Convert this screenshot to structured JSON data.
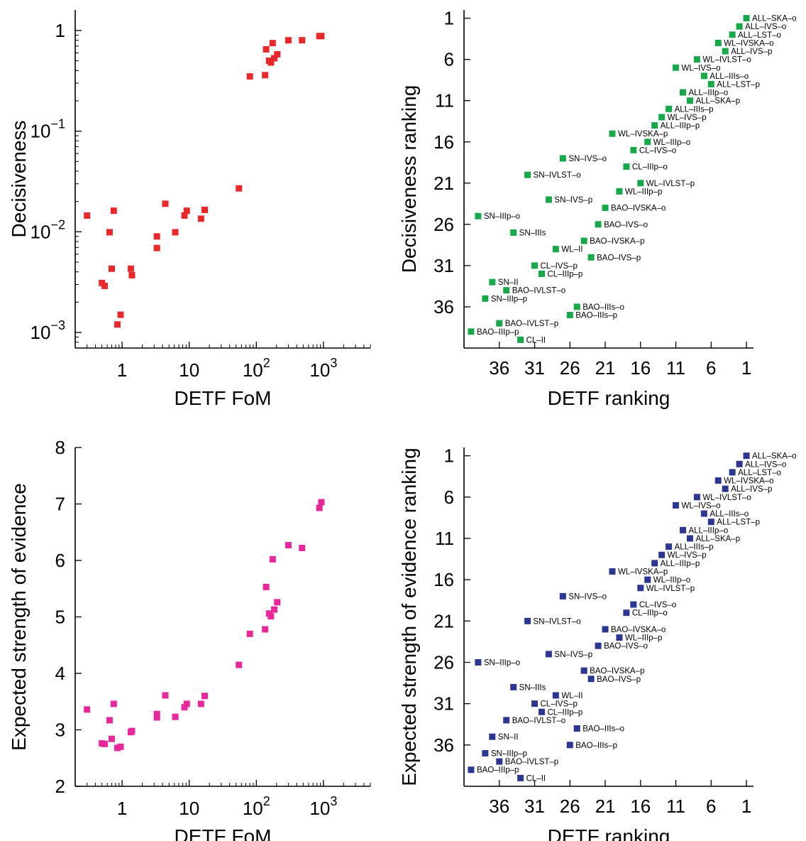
{
  "colors": {
    "decisiveness": "#e8292c",
    "evidence": "#e6289a",
    "rank_top": "#18a84a",
    "rank_bottom": "#2b3791"
  },
  "chart_data": [
    {
      "id": "fom-decisiveness",
      "type": "scatter",
      "xlabel": "DETF FoM",
      "ylabel": "Decisiveness",
      "xscale": "log",
      "yscale": "log",
      "xlim": [
        0.2,
        5000
      ],
      "ylim": [
        0.0007,
        1.6
      ],
      "xticks": [
        {
          "v": 1,
          "t": "1",
          "e": ""
        },
        {
          "v": 10,
          "t": "10",
          "e": ""
        },
        {
          "v": 100,
          "t": "10",
          "e": "2"
        },
        {
          "v": 1000,
          "t": "10",
          "e": "3"
        }
      ],
      "yticks": [
        {
          "v": 0.001,
          "t": "10",
          "e": "−3"
        },
        {
          "v": 0.01,
          "t": "10",
          "e": "−2"
        },
        {
          "v": 0.1,
          "t": "10",
          "e": "−1"
        },
        {
          "v": 1,
          "t": "1",
          "e": ""
        }
      ],
      "color_key": "decisiveness",
      "points": [
        [
          0.3,
          0.0145
        ],
        [
          0.5,
          0.0031
        ],
        [
          0.55,
          0.0029
        ],
        [
          0.65,
          0.0099
        ],
        [
          0.7,
          0.0043
        ],
        [
          0.75,
          0.0162
        ],
        [
          0.85,
          0.0012
        ],
        [
          0.95,
          0.0015
        ],
        [
          1.35,
          0.0043
        ],
        [
          1.4,
          0.0037
        ],
        [
          3.3,
          0.009
        ],
        [
          3.3,
          0.0069
        ],
        [
          4.4,
          0.019
        ],
        [
          6.2,
          0.0099
        ],
        [
          8.5,
          0.0145
        ],
        [
          9.2,
          0.0162
        ],
        [
          15,
          0.0135
        ],
        [
          17,
          0.0165
        ],
        [
          55,
          0.027
        ],
        [
          80,
          0.35
        ],
        [
          135,
          0.36
        ],
        [
          140,
          0.65
        ],
        [
          155,
          0.5
        ],
        [
          165,
          0.48
        ],
        [
          175,
          0.75
        ],
        [
          185,
          0.53
        ],
        [
          205,
          0.58
        ],
        [
          300,
          0.8
        ],
        [
          480,
          0.8
        ],
        [
          870,
          0.88
        ],
        [
          930,
          0.88
        ]
      ]
    },
    {
      "id": "rank-decisiveness",
      "type": "scatter",
      "xlabel": "DETF ranking",
      "ylabel": "Decisiveness ranking",
      "xlim": [
        41,
        0
      ],
      "ylim": [
        41,
        0
      ],
      "xticks": [
        36,
        31,
        26,
        21,
        16,
        11,
        6,
        1
      ],
      "yticks": [
        1,
        6,
        11,
        16,
        21,
        26,
        31,
        36
      ],
      "color_key": "rank_top",
      "points": [
        {
          "x": 1,
          "y": 1,
          "label": "ALL–SKA–o"
        },
        {
          "x": 2,
          "y": 2,
          "label": "ALL–IVS–o"
        },
        {
          "x": 3,
          "y": 3,
          "label": "ALL–LST–o"
        },
        {
          "x": 5,
          "y": 4,
          "label": "WL–IVSKA–o"
        },
        {
          "x": 4,
          "y": 5,
          "label": "ALL–IVS–p"
        },
        {
          "x": 8,
          "y": 6,
          "label": "WL–IVLST–o"
        },
        {
          "x": 11,
          "y": 7,
          "label": "WL–IVS–o"
        },
        {
          "x": 7,
          "y": 8,
          "label": "ALL–IIIs–o"
        },
        {
          "x": 6,
          "y": 9,
          "label": "ALL–LST–p"
        },
        {
          "x": 10,
          "y": 10,
          "label": "ALL–IIIp–o"
        },
        {
          "x": 9,
          "y": 11,
          "label": "ALL–SKA–p"
        },
        {
          "x": 12,
          "y": 12,
          "label": "ALL–IIIs–p"
        },
        {
          "x": 13,
          "y": 13,
          "label": "WL–IVS–p"
        },
        {
          "x": 14,
          "y": 14,
          "label": "ALL–IIIp–p"
        },
        {
          "x": 20,
          "y": 15,
          "label": "WL–IVSKA–p"
        },
        {
          "x": 15,
          "y": 16,
          "label": "WL–IIIp–o"
        },
        {
          "x": 17,
          "y": 17,
          "label": "CL–IVS–o"
        },
        {
          "x": 27,
          "y": 18,
          "label": "SN–IVS–o"
        },
        {
          "x": 18,
          "y": 19,
          "label": "CL–IIIp–o"
        },
        {
          "x": 32,
          "y": 20,
          "label": "SN–IVLST–o"
        },
        {
          "x": 16,
          "y": 21,
          "label": "WL–IVLST–p"
        },
        {
          "x": 19,
          "y": 22,
          "label": "WL–IIIp–p"
        },
        {
          "x": 29,
          "y": 23,
          "label": "SN–IVS–p"
        },
        {
          "x": 21,
          "y": 24,
          "label": "BAO–IVSKA–o"
        },
        {
          "x": 39,
          "y": 25,
          "label": "SN–IIIp–o"
        },
        {
          "x": 22,
          "y": 26,
          "label": "BAO–IVS–o"
        },
        {
          "x": 34,
          "y": 27,
          "label": "SN–IIIs"
        },
        {
          "x": 24,
          "y": 28,
          "label": "BAO–IVSKA–p"
        },
        {
          "x": 28,
          "y": 29,
          "label": "WL–II"
        },
        {
          "x": 23,
          "y": 30,
          "label": "BAO–IVS–p"
        },
        {
          "x": 31,
          "y": 31,
          "label": "CL–IVS–p"
        },
        {
          "x": 30,
          "y": 32,
          "label": "CL–IIIp–p"
        },
        {
          "x": 37,
          "y": 33,
          "label": "SN–II"
        },
        {
          "x": 35,
          "y": 34,
          "label": "BAO–IVLST–o"
        },
        {
          "x": 38,
          "y": 35,
          "label": "SN–IIIp–p"
        },
        {
          "x": 25,
          "y": 36,
          "label": "BAO–IIIs–o"
        },
        {
          "x": 26,
          "y": 37,
          "label": "BAO–IIIs–p"
        },
        {
          "x": 36,
          "y": 38,
          "label": "BAO–IVLST–p"
        },
        {
          "x": 40,
          "y": 39,
          "label": "BAO–IIIp–p"
        },
        {
          "x": 33,
          "y": 40,
          "label": "CL–II"
        }
      ]
    },
    {
      "id": "fom-evidence",
      "type": "scatter",
      "xlabel": "DETF FoM",
      "ylabel": "Expected strength of evidence",
      "xscale": "log",
      "yscale": "linear",
      "xlim": [
        0.2,
        5000
      ],
      "ylim": [
        2,
        8
      ],
      "xticks": [
        {
          "v": 1,
          "t": "1",
          "e": ""
        },
        {
          "v": 10,
          "t": "10",
          "e": ""
        },
        {
          "v": 100,
          "t": "10",
          "e": "2"
        },
        {
          "v": 1000,
          "t": "10",
          "e": "3"
        }
      ],
      "yticks": [
        {
          "v": 2,
          "t": "2",
          "e": ""
        },
        {
          "v": 3,
          "t": "3",
          "e": ""
        },
        {
          "v": 4,
          "t": "4",
          "e": ""
        },
        {
          "v": 5,
          "t": "5",
          "e": ""
        },
        {
          "v": 6,
          "t": "6",
          "e": ""
        },
        {
          "v": 7,
          "t": "7",
          "e": ""
        },
        {
          "v": 8,
          "t": "8",
          "e": ""
        }
      ],
      "color_key": "evidence",
      "points": [
        [
          0.3,
          3.36
        ],
        [
          0.5,
          2.76
        ],
        [
          0.55,
          2.75
        ],
        [
          0.65,
          3.17
        ],
        [
          0.7,
          2.84
        ],
        [
          0.75,
          3.46
        ],
        [
          0.85,
          2.68
        ],
        [
          0.95,
          2.7
        ],
        [
          1.35,
          2.96
        ],
        [
          1.4,
          2.98
        ],
        [
          3.3,
          3.22
        ],
        [
          3.3,
          3.28
        ],
        [
          4.4,
          3.61
        ],
        [
          6.2,
          3.23
        ],
        [
          8.5,
          3.4
        ],
        [
          9.2,
          3.46
        ],
        [
          15,
          3.46
        ],
        [
          17,
          3.6
        ],
        [
          55,
          4.15
        ],
        [
          80,
          4.7
        ],
        [
          135,
          4.78
        ],
        [
          140,
          5.53
        ],
        [
          155,
          5.06
        ],
        [
          165,
          5.01
        ],
        [
          175,
          6.02
        ],
        [
          185,
          5.13
        ],
        [
          205,
          5.26
        ],
        [
          300,
          6.27
        ],
        [
          480,
          6.22
        ],
        [
          870,
          6.93
        ],
        [
          930,
          7.03
        ]
      ]
    },
    {
      "id": "rank-evidence",
      "type": "scatter",
      "xlabel": "DETF ranking",
      "ylabel": "Expected strength of evidence ranking",
      "xlim": [
        41,
        0
      ],
      "ylim": [
        41,
        0
      ],
      "xticks": [
        36,
        31,
        26,
        21,
        16,
        11,
        6,
        1
      ],
      "yticks": [
        1,
        6,
        11,
        16,
        21,
        26,
        31,
        36
      ],
      "color_key": "rank_bottom",
      "points": [
        {
          "x": 1,
          "y": 1,
          "label": "ALL–SKA–o"
        },
        {
          "x": 2,
          "y": 2,
          "label": "ALL–IVS–o"
        },
        {
          "x": 3,
          "y": 3,
          "label": "ALL–LST–o"
        },
        {
          "x": 5,
          "y": 4,
          "label": "WL–IVSKA–o"
        },
        {
          "x": 4,
          "y": 5,
          "label": "ALL–IVS–p"
        },
        {
          "x": 8,
          "y": 6,
          "label": "WL–IVLST–o"
        },
        {
          "x": 11,
          "y": 7,
          "label": "WL–IVS–o"
        },
        {
          "x": 7,
          "y": 8,
          "label": "ALL–IIIs–o"
        },
        {
          "x": 6,
          "y": 9,
          "label": "ALL–LST–p"
        },
        {
          "x": 10,
          "y": 10,
          "label": "ALL–IIIp–o"
        },
        {
          "x": 9,
          "y": 11,
          "label": "ALL–SKA–p"
        },
        {
          "x": 12,
          "y": 12,
          "label": "ALL–IIIs–p"
        },
        {
          "x": 13,
          "y": 13,
          "label": "WL–IVS–p"
        },
        {
          "x": 14,
          "y": 14,
          "label": "ALL–IIIp–p"
        },
        {
          "x": 20,
          "y": 15,
          "label": "WL–IVSKA–p"
        },
        {
          "x": 15,
          "y": 16,
          "label": "WL–IIIp–o"
        },
        {
          "x": 16,
          "y": 17,
          "label": "WL–IVLST–p"
        },
        {
          "x": 27,
          "y": 18,
          "label": "SN–IVS–o"
        },
        {
          "x": 17,
          "y": 19,
          "label": "CL–IVS–o"
        },
        {
          "x": 18,
          "y": 20,
          "label": "CL–IIIp–o"
        },
        {
          "x": 32,
          "y": 21,
          "label": "SN–IVLST–o"
        },
        {
          "x": 21,
          "y": 22,
          "label": "BAO–IVSKA–o"
        },
        {
          "x": 19,
          "y": 23,
          "label": "WL–IIIp–p"
        },
        {
          "x": 22,
          "y": 24,
          "label": "BAO–IVS–o"
        },
        {
          "x": 29,
          "y": 25,
          "label": "SN–IVS–p"
        },
        {
          "x": 39,
          "y": 26,
          "label": "SN–IIIp–o"
        },
        {
          "x": 24,
          "y": 27,
          "label": "BAO–IVSKA–p"
        },
        {
          "x": 23,
          "y": 28,
          "label": "BAO–IVS–p"
        },
        {
          "x": 34,
          "y": 29,
          "label": "SN–IIIs"
        },
        {
          "x": 28,
          "y": 30,
          "label": "WL–II"
        },
        {
          "x": 31,
          "y": 31,
          "label": "CL–IVS–p"
        },
        {
          "x": 30,
          "y": 32,
          "label": "CL–IIIp–p"
        },
        {
          "x": 35,
          "y": 33,
          "label": "BAO–IVLST–o"
        },
        {
          "x": 25,
          "y": 34,
          "label": "BAO–IIIs–o"
        },
        {
          "x": 37,
          "y": 35,
          "label": "SN–II"
        },
        {
          "x": 26,
          "y": 36,
          "label": "BAO–IIIs–p"
        },
        {
          "x": 38,
          "y": 37,
          "label": "SN–IIIp–p"
        },
        {
          "x": 36,
          "y": 38,
          "label": "BAO–IVLST–p"
        },
        {
          "x": 40,
          "y": 39,
          "label": "BAO–IIIp–p"
        },
        {
          "x": 33,
          "y": 40,
          "label": "CL–II"
        }
      ]
    }
  ]
}
